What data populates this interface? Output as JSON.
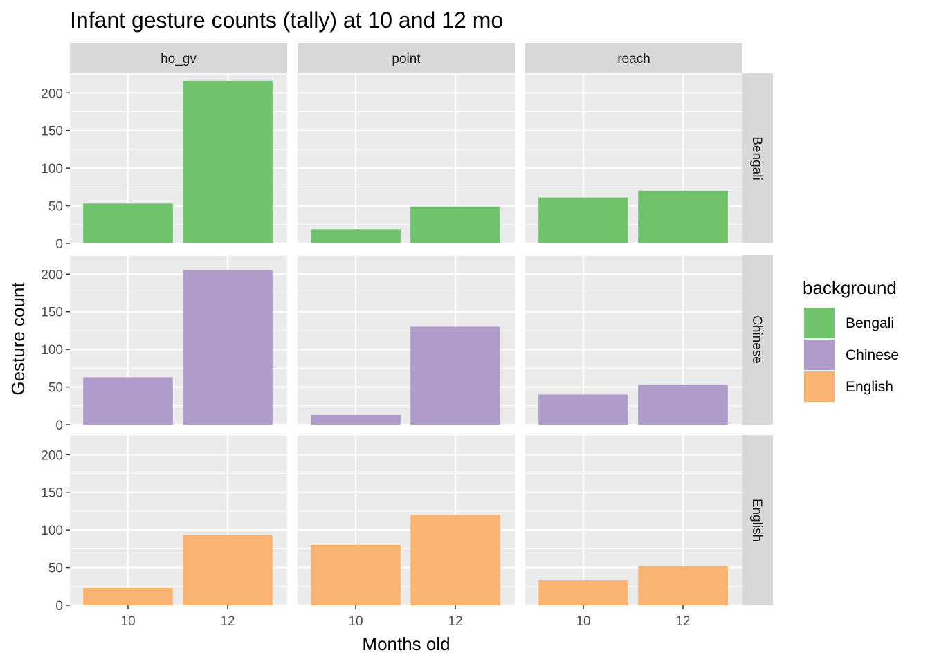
{
  "chart_data": {
    "type": "bar",
    "title": "Infant gesture counts (tally) at 10 and 12 mo",
    "xlabel": "Months old",
    "ylabel": "Gesture count",
    "x_categories": [
      "10",
      "12"
    ],
    "y_ticks": [
      0,
      50,
      100,
      150,
      200
    ],
    "ylim": [
      0,
      226
    ],
    "grid": true,
    "facet_columns": [
      "ho_gv",
      "point",
      "reach"
    ],
    "facet_rows": [
      "Bengali",
      "Chinese",
      "English"
    ],
    "legend": {
      "title": "background",
      "placement": "right",
      "entries": [
        {
          "label": "Bengali",
          "color": "#70c26c"
        },
        {
          "label": "Chinese",
          "color": "#b09ccb"
        },
        {
          "label": "English",
          "color": "#f9b474"
        }
      ]
    },
    "panels": [
      {
        "row": "Bengali",
        "column": "ho_gv",
        "values": [
          53,
          216
        ]
      },
      {
        "row": "Bengali",
        "column": "point",
        "values": [
          19,
          49
        ]
      },
      {
        "row": "Bengali",
        "column": "reach",
        "values": [
          61,
          70
        ]
      },
      {
        "row": "Chinese",
        "column": "ho_gv",
        "values": [
          63,
          205
        ]
      },
      {
        "row": "Chinese",
        "column": "point",
        "values": [
          13,
          130
        ]
      },
      {
        "row": "Chinese",
        "column": "reach",
        "values": [
          40,
          53
        ]
      },
      {
        "row": "English",
        "column": "ho_gv",
        "values": [
          23,
          93
        ]
      },
      {
        "row": "English",
        "column": "point",
        "values": [
          80,
          120
        ]
      },
      {
        "row": "English",
        "column": "reach",
        "values": [
          33,
          52
        ]
      }
    ]
  }
}
